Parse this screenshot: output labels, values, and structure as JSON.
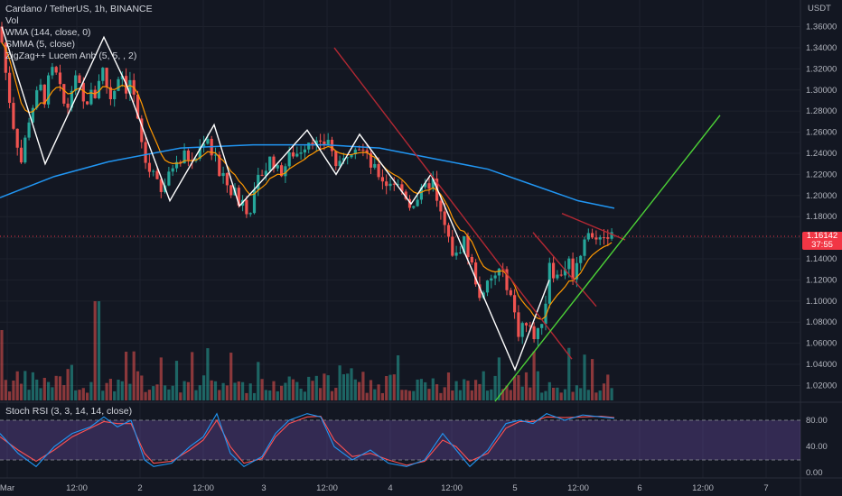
{
  "header": {
    "symbol_line": "Cardano / TetherUS, 1h, BINANCE",
    "indicators": [
      "Vol",
      "WMA (144, close, 0)",
      "SMMA (5, close)",
      "ZigZag++ Lucem Anb (5, 5, , 2)"
    ]
  },
  "price_axis": {
    "unit": "USDT",
    "labels": [
      "1.36000",
      "1.34000",
      "1.32000",
      "1.30000",
      "1.28000",
      "1.26000",
      "1.24000",
      "1.22000",
      "1.20000",
      "1.18000",
      "1.16000",
      "1.14000",
      "1.12000",
      "1.10000",
      "1.08000",
      "1.06000",
      "1.04000",
      "1.02000"
    ]
  },
  "current_price": {
    "value": "1.16142",
    "countdown": "37:55"
  },
  "time_axis": {
    "labels": [
      "Mar",
      "12:00",
      "2",
      "12:00",
      "3",
      "12:00",
      "4",
      "12:00",
      "5",
      "12:00",
      "6",
      "12:00",
      "7"
    ]
  },
  "rsi": {
    "label": "Stoch RSI (3, 3, 14, 14, close)",
    "levels": [
      "80.00",
      "40.00",
      "0.00"
    ]
  },
  "colors": {
    "background": "#131722",
    "up": "#26a69a",
    "down": "#ef5350",
    "wma": "#2196f3",
    "smma": "#ff9800",
    "zigzag": "#ffffff",
    "trend_red": "#b22833",
    "trend_green": "#4cd137",
    "rsi_k": "#2196f3",
    "rsi_d": "#ff5252",
    "rsi_band": "#7e57c2"
  },
  "chart_data": {
    "type": "candlestick",
    "price_range": [
      1.005,
      1.375
    ],
    "close_path": [
      [
        0,
        1.36
      ],
      [
        4,
        1.33
      ],
      [
        9,
        1.3
      ],
      [
        14,
        1.27
      ],
      [
        19,
        1.25
      ],
      [
        24,
        1.23
      ],
      [
        29,
        1.26
      ],
      [
        34,
        1.28
      ],
      [
        39,
        1.29
      ],
      [
        44,
        1.305
      ],
      [
        49,
        1.29
      ],
      [
        54,
        1.31
      ],
      [
        59,
        1.32
      ],
      [
        64,
        1.31
      ],
      [
        69,
        1.29
      ],
      [
        74,
        1.28
      ],
      [
        79,
        1.3
      ],
      [
        84,
        1.31
      ],
      [
        89,
        1.3
      ],
      [
        94,
        1.28
      ],
      [
        99,
        1.3
      ],
      [
        104,
        1.29
      ],
      [
        109,
        1.31
      ],
      [
        114,
        1.32
      ],
      [
        119,
        1.3
      ],
      [
        124,
        1.29
      ],
      [
        129,
        1.31
      ],
      [
        134,
        1.32
      ],
      [
        139,
        1.3
      ],
      [
        144,
        1.31
      ],
      [
        149,
        1.29
      ],
      [
        154,
        1.26
      ],
      [
        159,
        1.24
      ],
      [
        164,
        1.22
      ],
      [
        169,
        1.23
      ],
      [
        174,
        1.21
      ],
      [
        179,
        1.2
      ],
      [
        184,
        1.215
      ],
      [
        189,
        1.22
      ],
      [
        194,
        1.24
      ],
      [
        199,
        1.23
      ],
      [
        204,
        1.24
      ],
      [
        209,
        1.235
      ],
      [
        214,
        1.23
      ],
      [
        219,
        1.24
      ],
      [
        224,
        1.25
      ],
      [
        229,
        1.26
      ],
      [
        234,
        1.24
      ],
      [
        239,
        1.24
      ],
      [
        244,
        1.21
      ],
      [
        249,
        1.22
      ],
      [
        254,
        1.2
      ],
      [
        259,
        1.21
      ],
      [
        264,
        1.19
      ],
      [
        269,
        1.2
      ],
      [
        274,
        1.185
      ],
      [
        279,
        1.19
      ],
      [
        284,
        1.21
      ],
      [
        289,
        1.22
      ],
      [
        294,
        1.225
      ],
      [
        299,
        1.235
      ],
      [
        304,
        1.23
      ],
      [
        309,
        1.22
      ],
      [
        314,
        1.225
      ],
      [
        319,
        1.235
      ],
      [
        324,
        1.24
      ],
      [
        329,
        1.24
      ],
      [
        334,
        1.245
      ],
      [
        339,
        1.25
      ],
      [
        344,
        1.255
      ],
      [
        349,
        1.25
      ],
      [
        354,
        1.245
      ],
      [
        359,
        1.25
      ],
      [
        364,
        1.255
      ],
      [
        369,
        1.235
      ],
      [
        374,
        1.225
      ],
      [
        379,
        1.23
      ],
      [
        384,
        1.24
      ],
      [
        389,
        1.245
      ],
      [
        394,
        1.25
      ],
      [
        399,
        1.245
      ],
      [
        404,
        1.24
      ],
      [
        409,
        1.23
      ],
      [
        414,
        1.225
      ],
      [
        419,
        1.22
      ],
      [
        424,
        1.215
      ],
      [
        429,
        1.21
      ],
      [
        434,
        1.215
      ],
      [
        439,
        1.21
      ],
      [
        444,
        1.205
      ],
      [
        449,
        1.2
      ],
      [
        454,
        1.19
      ],
      [
        459,
        1.195
      ],
      [
        464,
        1.2
      ],
      [
        469,
        1.205
      ],
      [
        474,
        1.21
      ],
      [
        479,
        1.215
      ],
      [
        484,
        1.19
      ],
      [
        489,
        1.18
      ],
      [
        494,
        1.165
      ],
      [
        499,
        1.15
      ],
      [
        504,
        1.14
      ],
      [
        509,
        1.15
      ],
      [
        514,
        1.16
      ],
      [
        519,
        1.14
      ],
      [
        524,
        1.13
      ],
      [
        529,
        1.11
      ],
      [
        534,
        1.1
      ],
      [
        539,
        1.115
      ],
      [
        544,
        1.12
      ],
      [
        549,
        1.125
      ],
      [
        554,
        1.13
      ],
      [
        559,
        1.12
      ],
      [
        564,
        1.11
      ],
      [
        569,
        1.09
      ],
      [
        574,
        1.07
      ],
      [
        579,
        1.08
      ],
      [
        584,
        1.075
      ],
      [
        589,
        1.07
      ],
      [
        594,
        1.065
      ],
      [
        599,
        1.08
      ],
      [
        604,
        1.1
      ],
      [
        609,
        1.145
      ],
      [
        614,
        1.12
      ],
      [
        619,
        1.125
      ],
      [
        624,
        1.13
      ],
      [
        629,
        1.14
      ],
      [
        634,
        1.125
      ],
      [
        639,
        1.135
      ],
      [
        644,
        1.15
      ],
      [
        649,
        1.17
      ],
      [
        654,
        1.16
      ],
      [
        659,
        1.155
      ],
      [
        664,
        1.165
      ],
      [
        669,
        1.16
      ],
      [
        674,
        1.165
      ],
      [
        679,
        1.16
      ]
    ],
    "wma": [
      [
        0,
        1.198
      ],
      [
        60,
        1.218
      ],
      [
        120,
        1.232
      ],
      [
        200,
        1.245
      ],
      [
        280,
        1.248
      ],
      [
        360,
        1.248
      ],
      [
        420,
        1.245
      ],
      [
        480,
        1.235
      ],
      [
        540,
        1.225
      ],
      [
        600,
        1.207
      ],
      [
        640,
        1.195
      ],
      [
        680,
        1.188
      ]
    ],
    "zigzag": [
      [
        2,
        1.36
      ],
      [
        50,
        1.23
      ],
      [
        115,
        1.35
      ],
      [
        140,
        1.305
      ],
      [
        188,
        1.195
      ],
      [
        237,
        1.267
      ],
      [
        265,
        1.19
      ],
      [
        340,
        1.262
      ],
      [
        372,
        1.22
      ],
      [
        398,
        1.258
      ],
      [
        455,
        1.192
      ],
      [
        477,
        1.22
      ],
      [
        570,
        1.035
      ],
      [
        608,
        1.12
      ]
    ],
    "trendlines": [
      {
        "color": "red",
        "from": [
          370,
          1.34
        ],
        "to": [
          633,
          1.045
        ]
      },
      {
        "color": "red",
        "from": [
          590,
          1.165
        ],
        "to": [
          660,
          1.095
        ]
      },
      {
        "color": "red",
        "from": [
          622,
          1.183
        ],
        "to": [
          692,
          1.158
        ]
      },
      {
        "color": "green",
        "from": [
          548,
          1.005
        ],
        "to": [
          797,
          1.276
        ]
      }
    ],
    "rsi_range": [
      0,
      100
    ],
    "rsi_bands": [
      20,
      80
    ],
    "rsi_k": [
      [
        0,
        60
      ],
      [
        20,
        30
      ],
      [
        40,
        10
      ],
      [
        60,
        40
      ],
      [
        80,
        60
      ],
      [
        100,
        70
      ],
      [
        115,
        85
      ],
      [
        130,
        70
      ],
      [
        145,
        80
      ],
      [
        160,
        20
      ],
      [
        170,
        10
      ],
      [
        190,
        15
      ],
      [
        210,
        40
      ],
      [
        225,
        55
      ],
      [
        240,
        90
      ],
      [
        255,
        30
      ],
      [
        270,
        10
      ],
      [
        290,
        25
      ],
      [
        305,
        60
      ],
      [
        320,
        80
      ],
      [
        340,
        90
      ],
      [
        355,
        85
      ],
      [
        370,
        40
      ],
      [
        390,
        20
      ],
      [
        410,
        35
      ],
      [
        430,
        15
      ],
      [
        450,
        10
      ],
      [
        470,
        20
      ],
      [
        490,
        60
      ],
      [
        505,
        35
      ],
      [
        520,
        10
      ],
      [
        540,
        35
      ],
      [
        560,
        75
      ],
      [
        575,
        80
      ],
      [
        590,
        75
      ],
      [
        605,
        90
      ],
      [
        625,
        80
      ],
      [
        645,
        88
      ],
      [
        665,
        85
      ],
      [
        680,
        83
      ]
    ],
    "rsi_d": [
      [
        0,
        55
      ],
      [
        20,
        35
      ],
      [
        40,
        18
      ],
      [
        60,
        35
      ],
      [
        80,
        55
      ],
      [
        100,
        68
      ],
      [
        115,
        78
      ],
      [
        130,
        75
      ],
      [
        145,
        75
      ],
      [
        160,
        30
      ],
      [
        170,
        15
      ],
      [
        190,
        18
      ],
      [
        210,
        35
      ],
      [
        225,
        50
      ],
      [
        240,
        80
      ],
      [
        255,
        40
      ],
      [
        270,
        15
      ],
      [
        290,
        22
      ],
      [
        305,
        55
      ],
      [
        320,
        75
      ],
      [
        340,
        85
      ],
      [
        355,
        86
      ],
      [
        370,
        50
      ],
      [
        390,
        25
      ],
      [
        410,
        30
      ],
      [
        430,
        20
      ],
      [
        450,
        12
      ],
      [
        470,
        18
      ],
      [
        490,
        50
      ],
      [
        505,
        40
      ],
      [
        520,
        18
      ],
      [
        540,
        30
      ],
      [
        560,
        68
      ],
      [
        575,
        78
      ],
      [
        590,
        78
      ],
      [
        605,
        85
      ],
      [
        625,
        84
      ],
      [
        645,
        85
      ],
      [
        665,
        86
      ],
      [
        680,
        84
      ]
    ]
  }
}
